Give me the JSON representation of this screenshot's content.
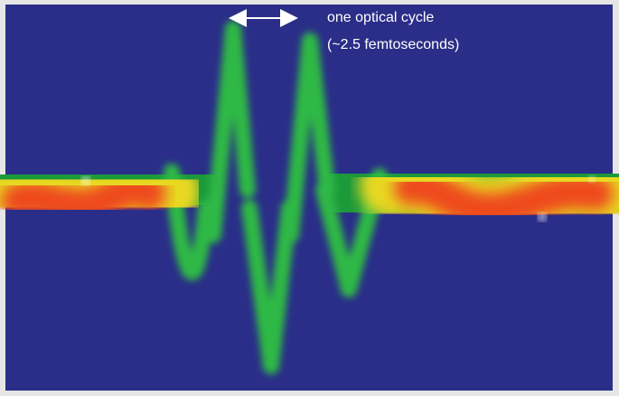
{
  "annotation": {
    "line1": "one optical cycle",
    "line2": "(~2.5 femtoseconds)"
  }
}
